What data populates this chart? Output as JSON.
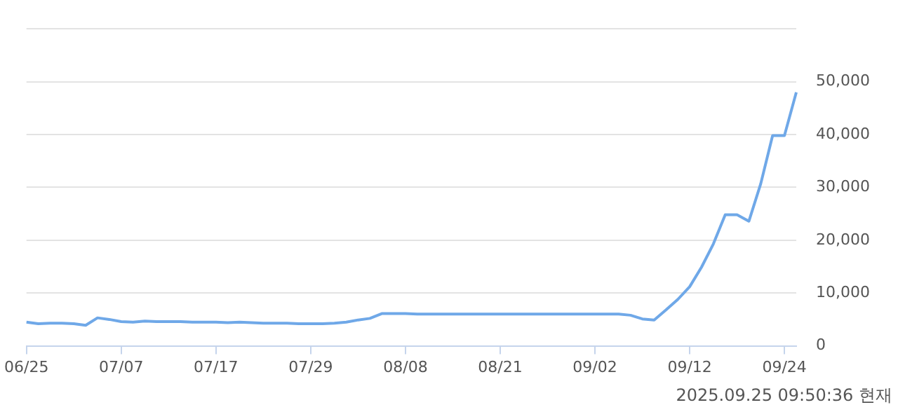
{
  "chart_data": {
    "type": "line",
    "categories": [
      "06/25",
      null,
      null,
      null,
      null,
      null,
      null,
      null,
      "07/07",
      null,
      null,
      null,
      null,
      null,
      null,
      null,
      "07/17",
      null,
      null,
      null,
      null,
      null,
      null,
      null,
      "07/29",
      null,
      null,
      null,
      null,
      null,
      null,
      null,
      "08/08",
      null,
      null,
      null,
      null,
      null,
      null,
      null,
      "08/21",
      null,
      null,
      null,
      null,
      null,
      null,
      null,
      "09/02",
      null,
      null,
      null,
      null,
      null,
      null,
      null,
      "09/12",
      null,
      null,
      null,
      null,
      null,
      null,
      null,
      "09/24",
      null
    ],
    "series": [
      {
        "color": "#6fa8e8",
        "values": [
          4500,
          4200,
          4300,
          4300,
          4200,
          3900,
          5300,
          5000,
          4600,
          4500,
          4700,
          4600,
          4600,
          4600,
          4500,
          4500,
          4500,
          4400,
          4500,
          4400,
          4300,
          4300,
          4300,
          4200,
          4200,
          4200,
          4300,
          4500,
          4900,
          5200,
          6100,
          6100,
          6100,
          6000,
          6000,
          6000,
          6000,
          6000,
          6000,
          6000,
          6000,
          6000,
          6000,
          6000,
          6000,
          6000,
          6000,
          6000,
          6000,
          6000,
          6000,
          5800,
          5100,
          4900,
          6800,
          8800,
          11200,
          14900,
          19300,
          24800,
          24800,
          23600,
          30700,
          39800,
          39800,
          48000
        ]
      }
    ],
    "ylim": [
      0,
      60000
    ],
    "yticks": [
      0,
      {
        "value": 10000,
        "label": "10,000"
      },
      {
        "value": 20000,
        "label": "20,000"
      },
      {
        "value": 30000,
        "label": "30,000"
      },
      {
        "value": 40000,
        "label": "40,000"
      },
      {
        "value": 50000,
        "label": "50,000"
      },
      {
        "value": 60000,
        "label": null
      }
    ],
    "grid": "y",
    "legend": false,
    "marker": "none",
    "line_style": "solid",
    "annotations": [
      "2025.09.25 09:50:36 현재"
    ]
  }
}
